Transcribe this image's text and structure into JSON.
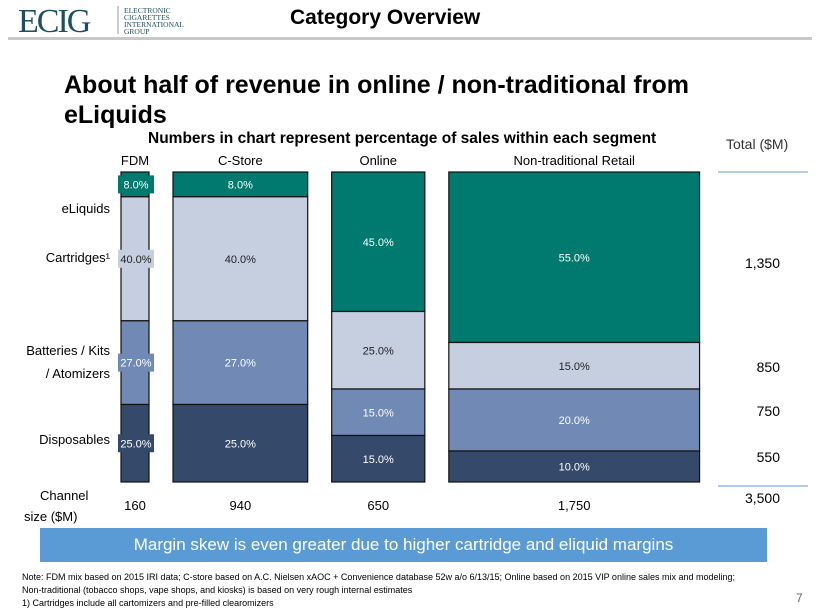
{
  "header": {
    "title": "Category Overview",
    "logo_text": "ECIG",
    "logo_subtext": [
      "ELECTRONIC",
      "CIGARETTES",
      "INTERNATIONAL",
      "GROUP"
    ]
  },
  "title": "About half of revenue in online / non-traditional from eLiquids",
  "subtitle": "Numbers in chart represent percentage of sales within each segment",
  "chart_data": {
    "type": "marimekko",
    "categories": [
      "FDM",
      "C-Store",
      "Online",
      "Non-traditional Retail"
    ],
    "channel_size_label": "Channel size ($M)",
    "channel_sizes": [
      160,
      940,
      650,
      1750
    ],
    "channel_size_labels": [
      "160",
      "940",
      "650",
      "1,750"
    ],
    "series": [
      {
        "name": "eLiquids",
        "values": [
          8.0,
          8.0,
          45.0,
          55.0
        ],
        "color": "#007a6e",
        "text": "#ffffff"
      },
      {
        "name": "Cartridges¹",
        "values": [
          40.0,
          40.0,
          25.0,
          15.0
        ],
        "color": "#c5cfe0",
        "text": "#222222"
      },
      {
        "name": "Batteries / Kits / Atomizers",
        "values": [
          27.0,
          27.0,
          15.0,
          20.0
        ],
        "color": "#7089b5",
        "text": "#ffffff"
      },
      {
        "name": "Disposables",
        "values": [
          25.0,
          25.0,
          15.0,
          10.0
        ],
        "color": "#354a6b",
        "text": "#ffffff"
      }
    ],
    "totals_header": "Total ($M)",
    "totals": [
      "1,350",
      "850",
      "750",
      "550"
    ],
    "grand_total": "3,500"
  },
  "banner": "Margin skew is even greater due to higher cartridge and eliquid margins",
  "notes": [
    "Note: FDM mix based on 2015 IRI data; C-store based on A.C. Nielsen xAOC + Convenience database 52w a/o 6/13/15; Online based on 2015 VIP online sales mix and modeling;",
    "Non-traditional (tobacco shops, vape shops, and kiosks) is based on very rough internal estimates",
    "1) Cartridges include all cartomizers and pre-filled clearomizers"
  ],
  "page_number": "7"
}
